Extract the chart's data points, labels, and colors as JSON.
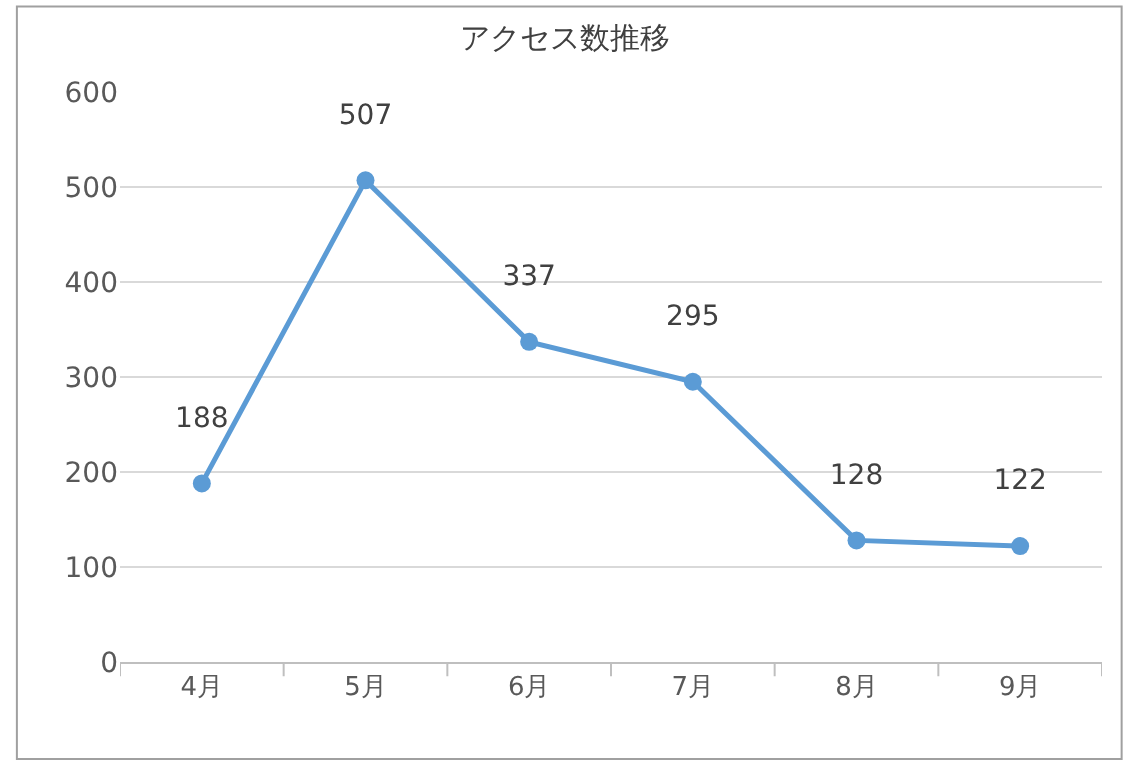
{
  "chart_data": {
    "type": "line",
    "title": "アクセス数推移",
    "categories": [
      "4月",
      "5月",
      "6月",
      "7月",
      "8月",
      "9月"
    ],
    "series": [
      {
        "color": "#5b9bd5",
        "values": [
          188,
          507,
          337,
          295,
          128,
          122
        ]
      }
    ],
    "ylim": [
      0,
      600
    ],
    "yticks": [
      0,
      100,
      200,
      300,
      400,
      500,
      600
    ],
    "grid": "y",
    "marker": "circle",
    "line_style": "solid",
    "data_labels": true
  }
}
